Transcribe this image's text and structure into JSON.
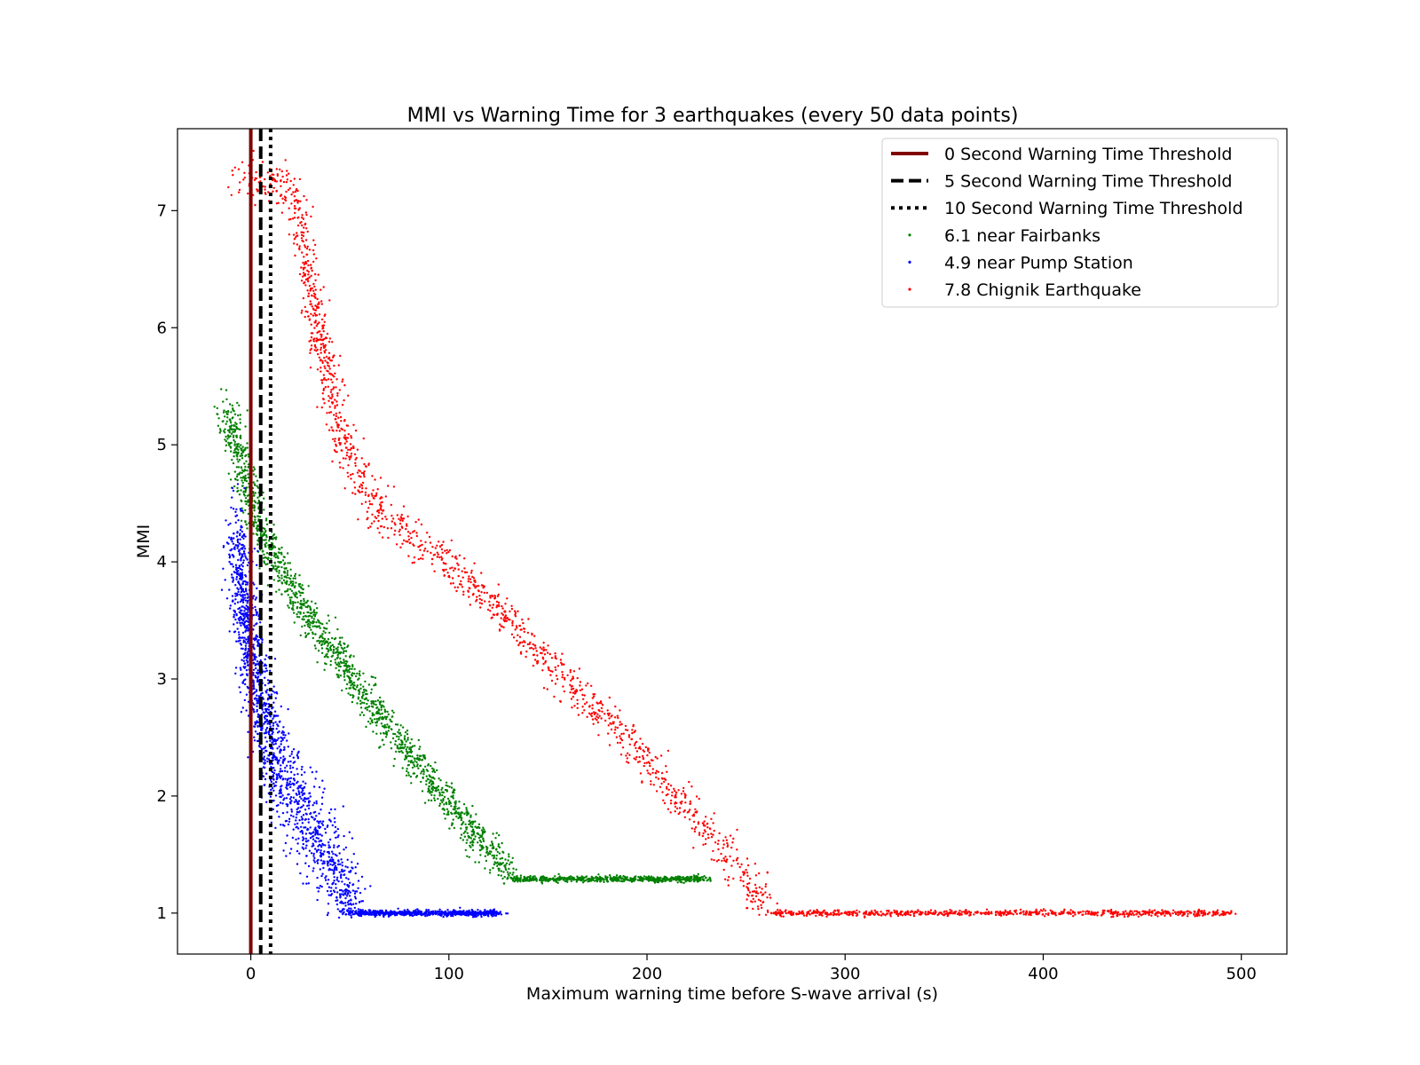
{
  "chart_data": {
    "type": "scatter",
    "title": "MMI vs Warning Time for 3 earthquakes (every 50 data points)",
    "xlabel": "Maximum warning time before S-wave arrival (s)",
    "ylabel": "MMI",
    "xlim": [
      -37,
      523
    ],
    "ylim": [
      0.65,
      7.7
    ],
    "xticks": [
      0,
      100,
      200,
      300,
      400,
      500
    ],
    "yticks": [
      1,
      2,
      3,
      4,
      5,
      6,
      7
    ],
    "grid": false,
    "legend_position": "top-right",
    "threshold_lines": [
      {
        "name": "0 Second Warning Time Threshold",
        "x": 0,
        "color": "#800000",
        "style": "solid"
      },
      {
        "name": "5 Second Warning Time Threshold",
        "x": 5,
        "color": "#000000",
        "style": "dashed"
      },
      {
        "name": "10 Second Warning Time Threshold",
        "x": 10,
        "color": "#000000",
        "style": "dotted"
      }
    ],
    "series": [
      {
        "name": "6.1 near Fairbanks",
        "color": "#008000",
        "trend": [
          [
            -12,
            5.3
          ],
          [
            -2,
            4.6
          ],
          [
            5,
            4.25
          ],
          [
            15,
            3.95
          ],
          [
            30,
            3.5
          ],
          [
            60,
            2.8
          ],
          [
            90,
            2.15
          ],
          [
            112,
            1.7
          ],
          [
            128,
            1.38
          ],
          [
            135,
            1.29
          ],
          [
            230,
            1.29
          ]
        ],
        "spread_mmi": 0.12,
        "flat_level": 1.29,
        "flat_range": [
          132,
          230
        ]
      },
      {
        "name": "4.9 near Pump Station",
        "color": "#0000ff",
        "trend": [
          [
            -8,
            4.2
          ],
          [
            -4,
            3.7
          ],
          [
            2,
            3.0
          ],
          [
            8,
            2.6
          ],
          [
            15,
            2.2
          ],
          [
            25,
            1.9
          ],
          [
            38,
            1.5
          ],
          [
            48,
            1.2
          ],
          [
            55,
            1.0
          ],
          [
            125,
            1.0
          ]
        ],
        "spread_mmi": 0.35,
        "flat_level": 1.0,
        "flat_range": [
          42,
          125
        ]
      },
      {
        "name": "7.8 Chignik Earthquake",
        "color": "#ff0000",
        "trend": [
          [
            -7,
            7.28
          ],
          [
            12,
            7.25
          ],
          [
            22,
            7.1
          ],
          [
            28,
            6.6
          ],
          [
            35,
            5.9
          ],
          [
            45,
            5.1
          ],
          [
            55,
            4.7
          ],
          [
            65,
            4.4
          ],
          [
            78,
            4.25
          ],
          [
            90,
            4.1
          ],
          [
            110,
            3.85
          ],
          [
            130,
            3.5
          ],
          [
            160,
            2.95
          ],
          [
            190,
            2.5
          ],
          [
            215,
            2.0
          ],
          [
            235,
            1.6
          ],
          [
            252,
            1.25
          ],
          [
            262,
            1.05
          ],
          [
            270,
            1.0
          ],
          [
            497,
            1.0
          ]
        ],
        "spread_mmi": 0.14,
        "flat_level": 1.0,
        "flat_range": [
          258,
          497
        ]
      }
    ]
  }
}
